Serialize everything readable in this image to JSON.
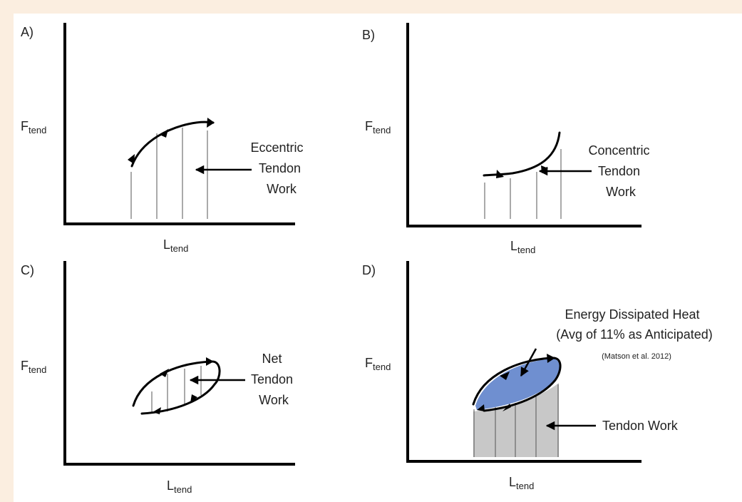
{
  "panels": {
    "a": {
      "letter": "A)",
      "ylabel_main": "F",
      "ylabel_sub": "tend",
      "xlabel_main": "L",
      "xlabel_sub": "tend",
      "label_lines": [
        "Eccentric",
        "Tendon",
        "Work"
      ]
    },
    "b": {
      "letter": "B)",
      "ylabel_main": "F",
      "ylabel_sub": "tend",
      "xlabel_main": "L",
      "xlabel_sub": "tend",
      "label_lines": [
        "Concentric",
        "Tendon",
        "Work"
      ]
    },
    "c": {
      "letter": "C)",
      "ylabel_main": "F",
      "ylabel_sub": "tend",
      "xlabel_main": "L",
      "xlabel_sub": "tend",
      "label_lines": [
        "Net",
        "Tendon",
        "Work"
      ]
    },
    "d": {
      "letter": "D)",
      "ylabel_main": "F",
      "ylabel_sub": "tend",
      "xlabel_main": "L",
      "xlabel_sub": "tend",
      "heat_line1": "Energy Dissipated Heat",
      "heat_line2": "(Avg of 11% as Anticipated)",
      "citation": "(Matson et al. 2012)",
      "work_label": "Tendon Work"
    }
  },
  "colors": {
    "background_border": "#fbeee0",
    "dissipated_heat_fill": "#6f8fd0",
    "tendon_work_fill": "#c8c8c8"
  }
}
